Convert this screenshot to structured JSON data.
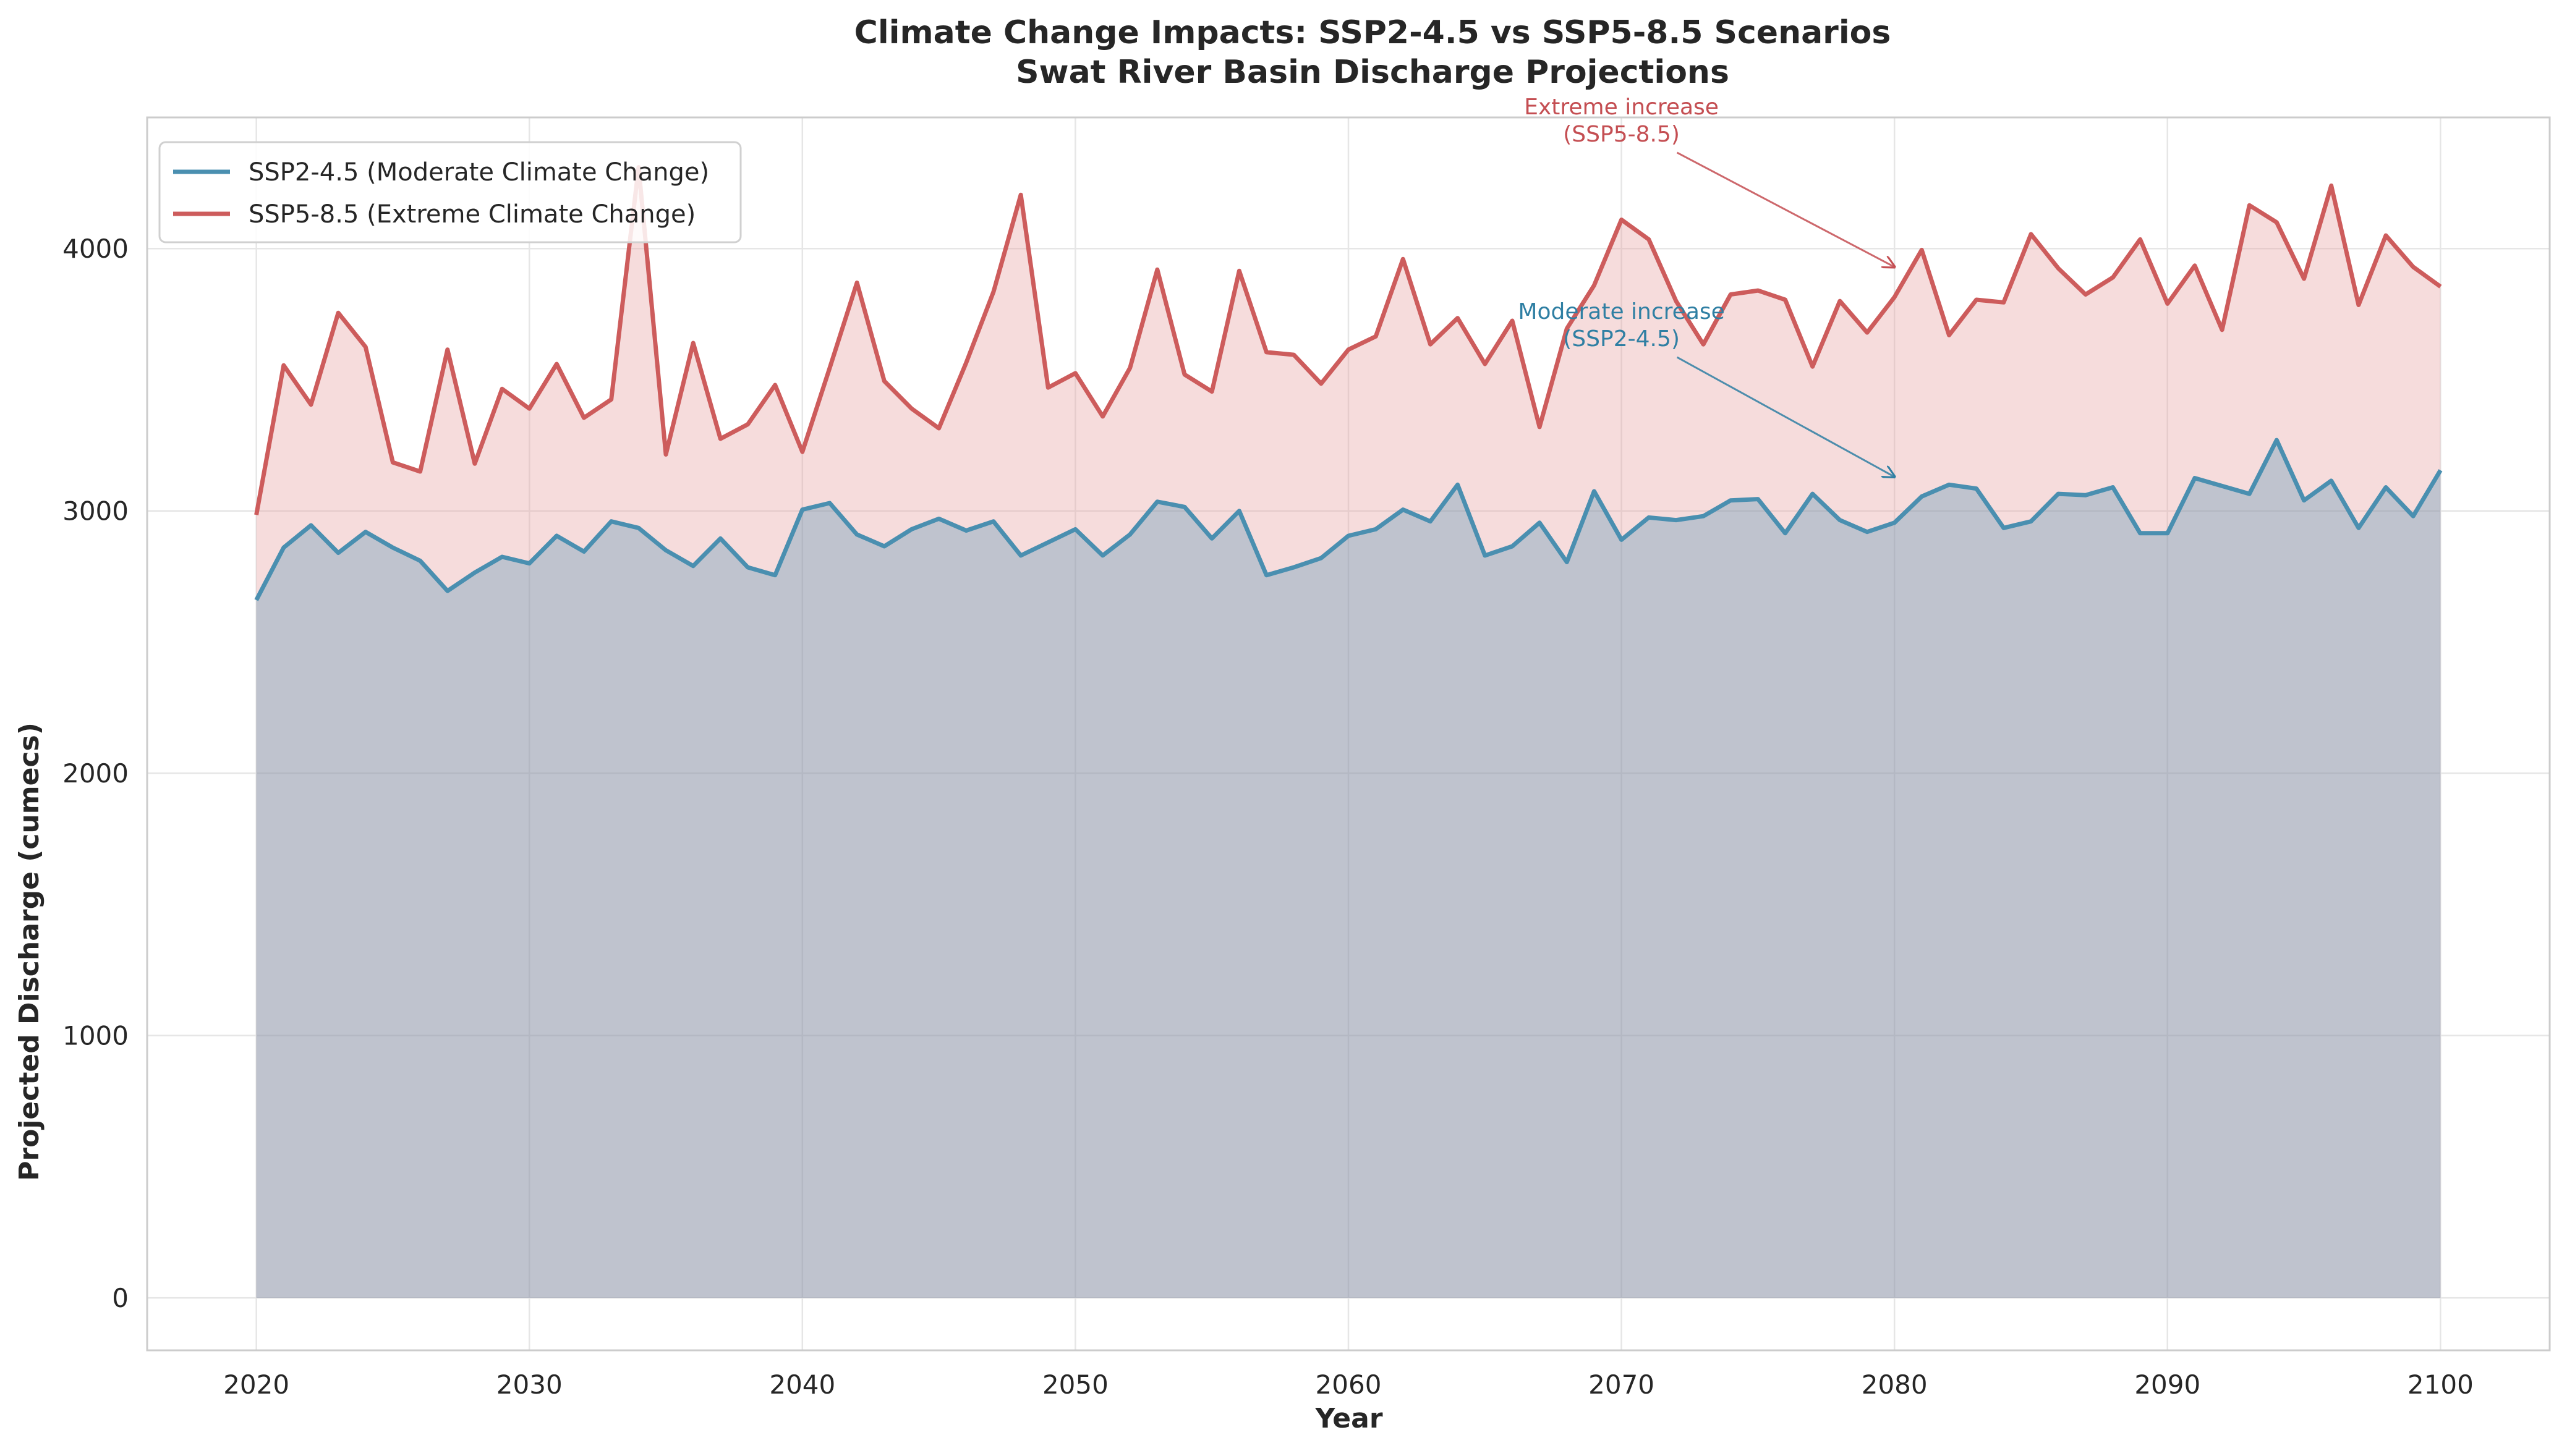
{
  "chart_data": {
    "type": "area",
    "title": "Climate Change Impacts: SSP2-4.5 vs SSP5-8.5 Scenarios",
    "subtitle": "Swat River Basin Discharge Projections",
    "xlabel": "Year",
    "ylabel": "Projected Discharge (cumecs)",
    "xlim": [
      2016,
      2104
    ],
    "ylim": [
      -200,
      4500
    ],
    "x_ticks": [
      "2020",
      "2030",
      "2040",
      "2050",
      "2060",
      "2070",
      "2080",
      "2090",
      "2100"
    ],
    "y_ticks": [
      "0",
      "1000",
      "2000",
      "3000",
      "4000"
    ],
    "grid": true,
    "legend_position": "top-left",
    "x": [
      2020,
      2021,
      2022,
      2023,
      2024,
      2025,
      2026,
      2027,
      2028,
      2029,
      2030,
      2031,
      2032,
      2033,
      2034,
      2035,
      2036,
      2037,
      2038,
      2039,
      2040,
      2041,
      2042,
      2043,
      2044,
      2045,
      2046,
      2047,
      2048,
      2049,
      2050,
      2051,
      2052,
      2053,
      2054,
      2055,
      2056,
      2057,
      2058,
      2059,
      2060,
      2061,
      2062,
      2063,
      2064,
      2065,
      2066,
      2067,
      2068,
      2069,
      2070,
      2071,
      2072,
      2073,
      2074,
      2075,
      2076,
      2077,
      2078,
      2079,
      2080,
      2081,
      2082,
      2083,
      2084,
      2085,
      2086,
      2087,
      2088,
      2089,
      2090,
      2091,
      2092,
      2093,
      2094,
      2095,
      2096,
      2097,
      2098,
      2099,
      2100
    ],
    "series": [
      {
        "name": "SSP2-4.5 (Moderate Climate Change)",
        "color": "#4a8fb0",
        "fill_color": "#4a8fb0",
        "values": [
          2660,
          2860,
          2945,
          2840,
          2920,
          2860,
          2810,
          2695,
          2765,
          2825,
          2800,
          2905,
          2845,
          2960,
          2935,
          2850,
          2790,
          2895,
          2785,
          2755,
          3005,
          3030,
          2910,
          2865,
          2930,
          2970,
          2925,
          2960,
          2830,
          2880,
          2930,
          2830,
          2910,
          3035,
          3015,
          2895,
          3000,
          2755,
          2785,
          2820,
          2905,
          2930,
          3005,
          2960,
          3100,
          2830,
          2865,
          2955,
          2805,
          3075,
          2890,
          2975,
          2965,
          2980,
          3040,
          3045,
          2915,
          3065,
          2965,
          2920,
          2955,
          3055,
          3100,
          3085,
          2935,
          2960,
          3065,
          3060,
          3090,
          2915,
          2915,
          3125,
          3095,
          3065,
          3270,
          3040,
          3115,
          2935,
          3090,
          2980,
          3155
        ]
      },
      {
        "name": "SSP5-8.5 (Extreme Climate Change)",
        "color": "#cd5c5c",
        "fill_color": "#e8a3a3",
        "values": [
          2985,
          3555,
          3405,
          3755,
          3625,
          3185,
          3150,
          3615,
          3180,
          3465,
          3390,
          3560,
          3355,
          3425,
          4310,
          3215,
          3640,
          3275,
          3330,
          3480,
          3225,
          3545,
          3870,
          3495,
          3390,
          3315,
          3565,
          3835,
          4205,
          3470,
          3525,
          3360,
          3545,
          3920,
          3520,
          3455,
          3915,
          3605,
          3595,
          3485,
          3615,
          3665,
          3960,
          3635,
          3735,
          3560,
          3725,
          3320,
          3695,
          3860,
          4110,
          4035,
          3800,
          3635,
          3825,
          3840,
          3805,
          3550,
          3800,
          3680,
          3815,
          3995,
          3670,
          3805,
          3795,
          4055,
          3925,
          3825,
          3890,
          4035,
          3790,
          3935,
          3690,
          4165,
          4100,
          3885,
          4240,
          3785,
          4050,
          3930,
          3855
        ]
      }
    ],
    "annotations": [
      {
        "text_line1": "Extreme increase",
        "text_line2": "(SSP5-8.5)",
        "color": "#c44e52",
        "point_x": 2080,
        "point_y": 3930,
        "text_x": 2070,
        "text_y": 4460
      },
      {
        "text_line1": "Moderate increase",
        "text_line2": "(SSP2-4.5)",
        "color": "#2f7fa3",
        "point_x": 2080,
        "point_y": 3130,
        "text_x": 2070,
        "text_y": 3680
      }
    ]
  }
}
